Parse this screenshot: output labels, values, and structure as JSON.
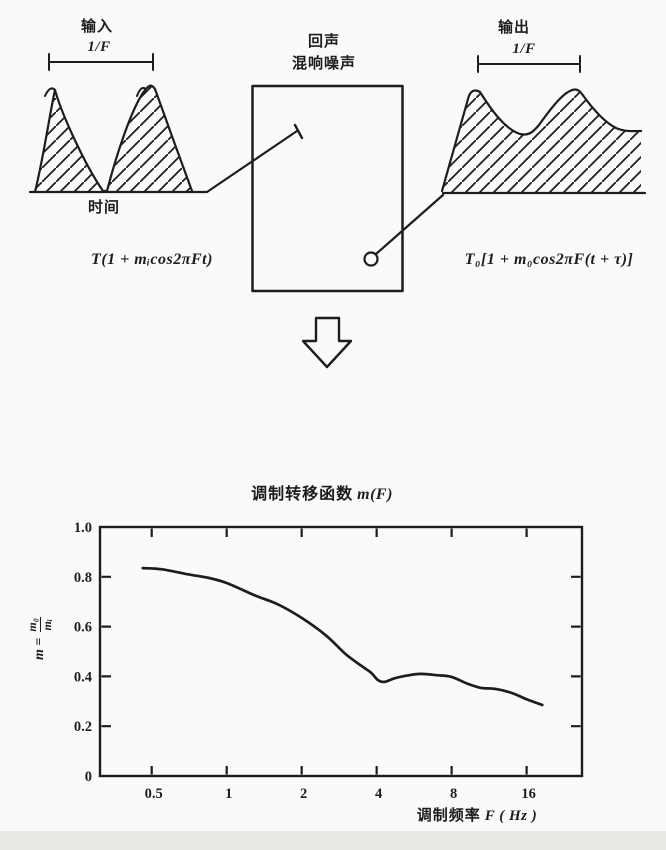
{
  "figure": {
    "description": "Modulation transfer function diagram: modulated input signal passes through a room (echo / reverberation / noise) producing a less-modulated, delayed output; below, the measured modulation transfer function m(F)."
  },
  "diagram": {
    "input": {
      "label": "输入",
      "period": "1/F",
      "time_axis_label": "时间",
      "formula": "T(1 + mᵢcos2πFt)"
    },
    "process_box": {
      "label_line1": "回声",
      "label_line2": "混响噪声"
    },
    "output": {
      "label": "输出",
      "period": "1/F",
      "formula": "T₀[1 + m₀cos2πF(t + τ)]"
    }
  },
  "chart_data": {
    "type": "line",
    "title": "调制转移函数 m(F)",
    "title_parts": {
      "cjk": "调制转移函数",
      "math": "m(F)"
    },
    "xlabel": "调制频率 F ( Hz )",
    "xlabel_parts": {
      "cjk": "调制频率",
      "math": "F ( Hz )"
    },
    "ylabel": "m = m₀/mᵢ",
    "ylabel_parts": {
      "prefix": "m =",
      "numerator": "m₀",
      "denominator": "mᵢ"
    },
    "x_scale": "log2",
    "xlim": [
      0.31,
      26.7
    ],
    "ylim": [
      0,
      1
    ],
    "xticks": [
      0.5,
      1,
      2,
      4,
      8,
      16
    ],
    "xtick_labels": [
      "0.5",
      "1",
      "2",
      "4",
      "8",
      "16"
    ],
    "yticks": [
      0,
      0.2,
      0.4,
      0.6,
      0.8,
      1
    ],
    "ytick_labels": [
      "0",
      "0.2",
      "0.4",
      "0.6",
      "0.8",
      "1.0"
    ],
    "grid": false,
    "legend": null,
    "series": [
      {
        "name": "m(F)",
        "points": [
          [
            0.46,
            0.835
          ],
          [
            0.55,
            0.83
          ],
          [
            0.7,
            0.81
          ],
          [
            0.85,
            0.795
          ],
          [
            1.0,
            0.775
          ],
          [
            1.3,
            0.725
          ],
          [
            1.6,
            0.69
          ],
          [
            2.0,
            0.635
          ],
          [
            2.5,
            0.565
          ],
          [
            3.0,
            0.49
          ],
          [
            3.5,
            0.44
          ],
          [
            3.8,
            0.415
          ],
          [
            4.05,
            0.385
          ],
          [
            4.3,
            0.378
          ],
          [
            4.7,
            0.392
          ],
          [
            5.2,
            0.402
          ],
          [
            6.0,
            0.41
          ],
          [
            7.0,
            0.405
          ],
          [
            8.0,
            0.398
          ],
          [
            9.3,
            0.37
          ],
          [
            10.5,
            0.354
          ],
          [
            12.0,
            0.35
          ],
          [
            14.0,
            0.333
          ],
          [
            16.0,
            0.308
          ],
          [
            18.5,
            0.285
          ]
        ]
      }
    ]
  },
  "colors": {
    "ink": "#1d1d1d",
    "paper": "#fafaf8",
    "edge_strip": "#e9e9e6"
  }
}
